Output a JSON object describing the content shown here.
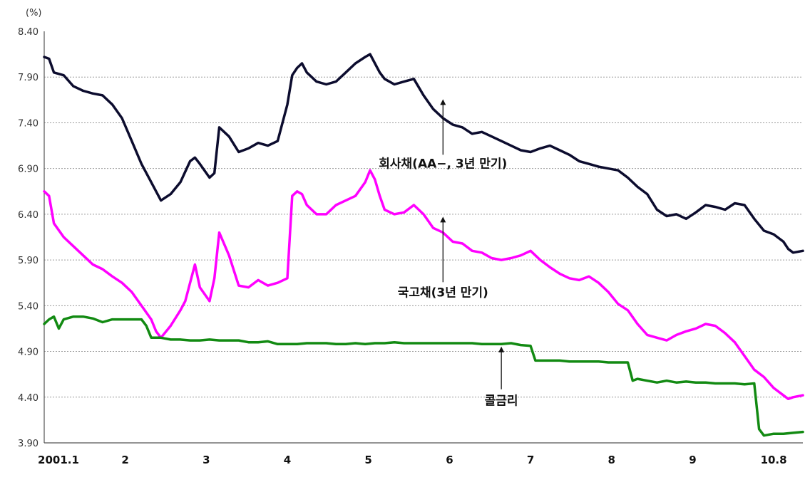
{
  "chart_data": {
    "type": "line",
    "unit_label": "(%)",
    "ylim": [
      3.9,
      8.4
    ],
    "yticks": [
      "8.40",
      "7.90",
      "7.40",
      "6.90",
      "6.40",
      "5.90",
      "5.40",
      "4.90",
      "4.40",
      "3.90"
    ],
    "ytick_values": [
      8.4,
      7.9,
      7.4,
      6.9,
      6.4,
      5.9,
      5.4,
      4.9,
      4.4,
      3.9
    ],
    "xlim": [
      2001.0,
      2001.78
    ],
    "x_tick_labels": [
      "2001.1",
      "2",
      "3",
      "4",
      "5",
      "6",
      "7",
      "8",
      "9",
      "10.8"
    ],
    "x_tick_positions": [
      2001.0,
      2001.0833,
      2001.1667,
      2001.25,
      2001.3333,
      2001.4167,
      2001.5,
      2001.5833,
      2001.6667,
      2001.75
    ],
    "grid": true,
    "series": [
      {
        "color": "#0c0c2e",
        "x": [
          2001.0,
          2001.005,
          2001.01,
          2001.02,
          2001.03,
          2001.04,
          2001.05,
          2001.06,
          2001.07,
          2001.08,
          2001.09,
          2001.1,
          2001.11,
          2001.12,
          2001.13,
          2001.14,
          2001.15,
          2001.155,
          2001.16,
          2001.17,
          2001.175,
          2001.18,
          2001.19,
          2001.2,
          2001.21,
          2001.22,
          2001.23,
          2001.24,
          2001.25,
          2001.255,
          2001.26,
          2001.265,
          2001.27,
          2001.28,
          2001.29,
          2001.3,
          2001.31,
          2001.32,
          2001.33,
          2001.335,
          2001.34,
          2001.345,
          2001.35,
          2001.36,
          2001.37,
          2001.38,
          2001.39,
          2001.4,
          2001.41,
          2001.42,
          2001.43,
          2001.44,
          2001.45,
          2001.46,
          2001.47,
          2001.48,
          2001.49,
          2001.5,
          2001.51,
          2001.52,
          2001.53,
          2001.54,
          2001.55,
          2001.56,
          2001.57,
          2001.58,
          2001.59,
          2001.6,
          2001.61,
          2001.62,
          2001.63,
          2001.64,
          2001.65,
          2001.66,
          2001.67,
          2001.68,
          2001.69,
          2001.7,
          2001.71,
          2001.72,
          2001.73,
          2001.74,
          2001.75,
          2001.76,
          2001.765,
          2001.77,
          2001.78
        ],
        "values": [
          8.12,
          8.1,
          7.95,
          7.92,
          7.8,
          7.75,
          7.72,
          7.7,
          7.6,
          7.45,
          7.2,
          6.95,
          6.75,
          6.55,
          6.62,
          6.75,
          6.98,
          7.02,
          6.95,
          6.8,
          6.85,
          7.35,
          7.25,
          7.08,
          7.12,
          7.18,
          7.15,
          7.2,
          7.6,
          7.92,
          8.0,
          8.05,
          7.95,
          7.85,
          7.82,
          7.85,
          7.95,
          8.05,
          8.12,
          8.15,
          8.05,
          7.95,
          7.88,
          7.82,
          7.85,
          7.88,
          7.7,
          7.55,
          7.45,
          7.38,
          7.35,
          7.28,
          7.3,
          7.25,
          7.2,
          7.15,
          7.1,
          7.08,
          7.12,
          7.15,
          7.1,
          7.05,
          6.98,
          6.95,
          6.92,
          6.9,
          6.88,
          6.8,
          6.7,
          6.62,
          6.45,
          6.38,
          6.4,
          6.35,
          6.42,
          6.5,
          6.48,
          6.45,
          6.52,
          6.5,
          6.35,
          6.22,
          6.18,
          6.1,
          6.02,
          5.98,
          6.0
        ]
      },
      {
        "color": "#ff00ff",
        "x": [
          2001.0,
          2001.005,
          2001.01,
          2001.02,
          2001.03,
          2001.04,
          2001.05,
          2001.06,
          2001.07,
          2001.08,
          2001.09,
          2001.1,
          2001.11,
          2001.115,
          2001.12,
          2001.13,
          2001.14,
          2001.145,
          2001.15,
          2001.155,
          2001.16,
          2001.17,
          2001.175,
          2001.18,
          2001.19,
          2001.2,
          2001.21,
          2001.22,
          2001.23,
          2001.24,
          2001.25,
          2001.255,
          2001.26,
          2001.265,
          2001.27,
          2001.28,
          2001.29,
          2001.3,
          2001.31,
          2001.32,
          2001.33,
          2001.335,
          2001.34,
          2001.345,
          2001.35,
          2001.36,
          2001.37,
          2001.38,
          2001.39,
          2001.4,
          2001.41,
          2001.42,
          2001.43,
          2001.44,
          2001.45,
          2001.46,
          2001.47,
          2001.48,
          2001.49,
          2001.5,
          2001.51,
          2001.52,
          2001.53,
          2001.54,
          2001.55,
          2001.56,
          2001.57,
          2001.58,
          2001.59,
          2001.6,
          2001.61,
          2001.62,
          2001.63,
          2001.64,
          2001.65,
          2001.66,
          2001.67,
          2001.68,
          2001.69,
          2001.7,
          2001.71,
          2001.72,
          2001.73,
          2001.74,
          2001.75,
          2001.76,
          2001.765,
          2001.77,
          2001.78
        ],
        "values": [
          6.65,
          6.6,
          6.3,
          6.15,
          6.05,
          5.95,
          5.85,
          5.8,
          5.72,
          5.65,
          5.55,
          5.4,
          5.25,
          5.12,
          5.05,
          5.18,
          5.35,
          5.45,
          5.65,
          5.85,
          5.6,
          5.45,
          5.7,
          6.2,
          5.95,
          5.62,
          5.6,
          5.68,
          5.62,
          5.65,
          5.7,
          6.6,
          6.65,
          6.62,
          6.5,
          6.4,
          6.4,
          6.5,
          6.55,
          6.6,
          6.75,
          6.88,
          6.78,
          6.6,
          6.45,
          6.4,
          6.42,
          6.5,
          6.4,
          6.25,
          6.2,
          6.1,
          6.08,
          6.0,
          5.98,
          5.92,
          5.9,
          5.92,
          5.95,
          6.0,
          5.9,
          5.82,
          5.75,
          5.7,
          5.68,
          5.72,
          5.65,
          5.55,
          5.42,
          5.35,
          5.2,
          5.08,
          5.05,
          5.02,
          5.08,
          5.12,
          5.15,
          5.2,
          5.18,
          5.1,
          5.0,
          4.85,
          4.7,
          4.62,
          4.5,
          4.42,
          4.38,
          4.4,
          4.42
        ]
      },
      {
        "color": "#128a12",
        "x": [
          2001.0,
          2001.005,
          2001.01,
          2001.015,
          2001.02,
          2001.03,
          2001.04,
          2001.05,
          2001.06,
          2001.07,
          2001.08,
          2001.09,
          2001.1,
          2001.105,
          2001.11,
          2001.12,
          2001.13,
          2001.14,
          2001.15,
          2001.16,
          2001.17,
          2001.18,
          2001.19,
          2001.2,
          2001.21,
          2001.22,
          2001.23,
          2001.24,
          2001.25,
          2001.26,
          2001.27,
          2001.28,
          2001.29,
          2001.3,
          2001.31,
          2001.32,
          2001.33,
          2001.34,
          2001.35,
          2001.36,
          2001.37,
          2001.38,
          2001.39,
          2001.4,
          2001.41,
          2001.42,
          2001.43,
          2001.44,
          2001.45,
          2001.46,
          2001.47,
          2001.48,
          2001.49,
          2001.5,
          2001.505,
          2001.51,
          2001.52,
          2001.53,
          2001.54,
          2001.55,
          2001.56,
          2001.57,
          2001.58,
          2001.59,
          2001.6,
          2001.605,
          2001.61,
          2001.62,
          2001.63,
          2001.64,
          2001.65,
          2001.66,
          2001.67,
          2001.68,
          2001.69,
          2001.7,
          2001.71,
          2001.72,
          2001.73,
          2001.735,
          2001.74,
          2001.75,
          2001.76,
          2001.77,
          2001.78
        ],
        "values": [
          5.2,
          5.25,
          5.28,
          5.15,
          5.25,
          5.28,
          5.28,
          5.26,
          5.22,
          5.25,
          5.25,
          5.25,
          5.25,
          5.18,
          5.05,
          5.05,
          5.03,
          5.03,
          5.02,
          5.02,
          5.03,
          5.02,
          5.02,
          5.02,
          5.0,
          5.0,
          5.01,
          4.98,
          4.98,
          4.98,
          4.99,
          4.99,
          4.99,
          4.98,
          4.98,
          4.99,
          4.98,
          4.99,
          4.99,
          5.0,
          4.99,
          4.99,
          4.99,
          4.99,
          4.99,
          4.99,
          4.99,
          4.99,
          4.98,
          4.98,
          4.98,
          4.99,
          4.97,
          4.96,
          4.8,
          4.8,
          4.8,
          4.8,
          4.79,
          4.79,
          4.79,
          4.79,
          4.78,
          4.78,
          4.78,
          4.58,
          4.6,
          4.58,
          4.56,
          4.58,
          4.56,
          4.57,
          4.56,
          4.56,
          4.55,
          4.55,
          4.55,
          4.54,
          4.55,
          4.05,
          3.98,
          4.0,
          4.0,
          4.01,
          4.02
        ]
      }
    ],
    "annotations": [
      {
        "text": "회사채(AA−, 3년 만기)",
        "x": 2001.41,
        "y": 7.72
      },
      {
        "text": "국고채(3년 만기)",
        "x": 2001.41,
        "y": 6.42
      },
      {
        "text": "콜금리",
        "x": 2001.47,
        "y": 5.0
      }
    ]
  }
}
